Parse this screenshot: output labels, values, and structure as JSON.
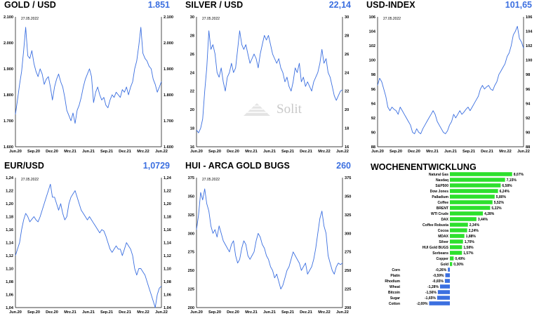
{
  "watermark": {
    "text": "Solit"
  },
  "chart_data": [
    {
      "id": "gold",
      "type": "line",
      "title": "GOLD / USD",
      "last_value": "1.851",
      "date_label": "27.05.2022",
      "color": "#3b6fe0",
      "x_labels": [
        "Jun.20",
        "Sep.20",
        "Dez.20",
        "Mrz.21",
        "Jun.21",
        "Sep.21",
        "Dez.21",
        "Mrz.22",
        "Jun.22"
      ],
      "y_ticks": [
        "2.100",
        "2.000",
        "1.900",
        "1.800",
        "1.700",
        "1.600"
      ],
      "ylim": [
        1600,
        2100
      ],
      "values": [
        1725,
        1780,
        1840,
        1890,
        1970,
        2060,
        1950,
        1940,
        1970,
        1920,
        1890,
        1870,
        1900,
        1880,
        1840,
        1860,
        1870,
        1830,
        1780,
        1830,
        1860,
        1880,
        1850,
        1830,
        1790,
        1740,
        1720,
        1700,
        1730,
        1690,
        1740,
        1760,
        1790,
        1830,
        1860,
        1880,
        1900,
        1870,
        1770,
        1810,
        1830,
        1800,
        1780,
        1790,
        1760,
        1750,
        1780,
        1800,
        1790,
        1810,
        1800,
        1790,
        1820,
        1810,
        1830,
        1800,
        1830,
        1850,
        1900,
        1930,
        1990,
        2060,
        1960,
        1940,
        1930,
        1910,
        1900,
        1860,
        1840,
        1810,
        1830,
        1851
      ]
    },
    {
      "id": "silver",
      "type": "line",
      "title": "SILVER / USD",
      "last_value": "22,14",
      "date_label": "27.05.2022",
      "color": "#3b6fe0",
      "x_labels": [
        "Jun.20",
        "Sep.20",
        "Dez.20",
        "Mrz.21",
        "Jun.21",
        "Sep.21",
        "Dez.21",
        "Mrz.22",
        "Jun.22"
      ],
      "y_ticks": [
        "30",
        "28",
        "26",
        "24",
        "22",
        "20",
        "18",
        "16"
      ],
      "ylim": [
        16,
        30
      ],
      "values": [
        17.8,
        17.5,
        18,
        19,
        22,
        24.5,
        28.5,
        26.5,
        27,
        26,
        24,
        23.5,
        24.5,
        23,
        22,
        23.5,
        24,
        25,
        24,
        24.5,
        26.5,
        28.5,
        27,
        26.5,
        27,
        26,
        25,
        25.5,
        26,
        25.5,
        24.5,
        26,
        27,
        28,
        27.5,
        28,
        27,
        26,
        25.5,
        25,
        25.5,
        24.5,
        24,
        23,
        23.5,
        22.5,
        22,
        23,
        24.5,
        24,
        25,
        23,
        23.5,
        22.5,
        23,
        22.5,
        22,
        23,
        23.5,
        24,
        25,
        26.5,
        25,
        25.5,
        24,
        23.5,
        22.5,
        21.5,
        21,
        21.5,
        22,
        22.14
      ]
    },
    {
      "id": "usd-index",
      "type": "line",
      "title": "USD-INDEX",
      "last_value": "101,65",
      "date_label": "27.05.2022",
      "color": "#3b6fe0",
      "x_labels": [
        "Jun.20",
        "Sep.20",
        "Dez.20",
        "Mrz.21",
        "Jun.21",
        "Sep.21",
        "Dez.21",
        "Mrz.22",
        "Jun.22"
      ],
      "y_ticks": [
        "106",
        "104",
        "102",
        "100",
        "98",
        "96",
        "94",
        "92",
        "90",
        "88"
      ],
      "ylim": [
        88,
        106
      ],
      "values": [
        96.5,
        97.5,
        97,
        96,
        95,
        93.5,
        93,
        93.5,
        93.2,
        93,
        92.5,
        93.5,
        93,
        92.5,
        92,
        91.5,
        91,
        90,
        89.8,
        90.5,
        90,
        89.8,
        90.5,
        91,
        91.5,
        92,
        92.5,
        93,
        92.5,
        91.5,
        91,
        90.5,
        90,
        89.8,
        90.2,
        91,
        91.5,
        92.5,
        92,
        92.5,
        93,
        92.5,
        92.8,
        93.2,
        93.5,
        93,
        93.5,
        94,
        94.5,
        95,
        96,
        96.5,
        96,
        96.3,
        96.5,
        96,
        95.8,
        96.5,
        97,
        98,
        98.5,
        99,
        99.5,
        100.5,
        101,
        102,
        103.5,
        104,
        104.7,
        103,
        102.5,
        101.65
      ]
    },
    {
      "id": "eur-usd",
      "type": "line",
      "title": "EUR/USD",
      "last_value": "1,0729",
      "date_label": "27.05.2022",
      "color": "#3b6fe0",
      "x_labels": [
        "Jun.20",
        "Sep.20",
        "Dez.20",
        "Mrz.21",
        "Jun.21",
        "Sep.21",
        "Dez.21",
        "Mrz.22",
        "Jun.22"
      ],
      "y_ticks": [
        "1,24",
        "1,22",
        "1,20",
        "1,18",
        "1,16",
        "1,14",
        "1,12",
        "1,10",
        "1,08",
        "1,06",
        "1,04"
      ],
      "ylim": [
        1.04,
        1.24
      ],
      "values": [
        1.12,
        1.13,
        1.14,
        1.16,
        1.175,
        1.185,
        1.18,
        1.172,
        1.176,
        1.18,
        1.175,
        1.172,
        1.18,
        1.19,
        1.2,
        1.21,
        1.22,
        1.23,
        1.21,
        1.21,
        1.2,
        1.19,
        1.2,
        1.185,
        1.175,
        1.18,
        1.2,
        1.21,
        1.215,
        1.22,
        1.21,
        1.2,
        1.19,
        1.185,
        1.18,
        1.175,
        1.18,
        1.175,
        1.17,
        1.165,
        1.16,
        1.155,
        1.16,
        1.158,
        1.15,
        1.14,
        1.13,
        1.125,
        1.13,
        1.135,
        1.13,
        1.13,
        1.12,
        1.13,
        1.14,
        1.135,
        1.13,
        1.12,
        1.1,
        1.09,
        1.1,
        1.1,
        1.095,
        1.09,
        1.08,
        1.07,
        1.06,
        1.05,
        1.04,
        1.06,
        1.07,
        1.0729
      ]
    },
    {
      "id": "hui",
      "type": "line",
      "title": "HUI - ARCA GOLD BUGS",
      "last_value": "260",
      "date_label": "27.05.2022",
      "color": "#3b6fe0",
      "x_labels": [
        "Jun.20",
        "Sep.20",
        "Dez.20",
        "Mrz.21",
        "Jun.21",
        "Sep.21",
        "Dez.21",
        "Mrz.22",
        "Jun.22"
      ],
      "y_ticks": [
        "375",
        "350",
        "325",
        "300",
        "275",
        "250",
        "225",
        "200"
      ],
      "ylim": [
        200,
        375
      ],
      "values": [
        305,
        325,
        355,
        345,
        360,
        340,
        330,
        310,
        300,
        305,
        295,
        310,
        300,
        290,
        285,
        280,
        275,
        285,
        290,
        270,
        260,
        265,
        280,
        290,
        285,
        270,
        265,
        270,
        275,
        290,
        300,
        295,
        285,
        280,
        270,
        265,
        255,
        250,
        240,
        245,
        235,
        225,
        230,
        240,
        250,
        255,
        265,
        275,
        270,
        265,
        260,
        250,
        255,
        260,
        245,
        250,
        255,
        265,
        280,
        300,
        320,
        330,
        310,
        300,
        270,
        260,
        250,
        245,
        255,
        260,
        258,
        260
      ]
    },
    {
      "id": "wochenentwicklung",
      "type": "bar",
      "orientation": "horizontal",
      "title": "WOCHENENTWICKLUNG",
      "positive_color": "#2de02d",
      "negative_color": "#3b6fe0",
      "categories": [
        "Natural Gas",
        "Nasdaq",
        "S&P500",
        "Dow Jones",
        "Palladium",
        "Coffee",
        "BRENT",
        "WTI Crude",
        "DAX",
        "Coffee Robusta",
        "Cocoa",
        "MDAX",
        "Silver",
        "HUI Gold BUGS",
        "Sorbeans",
        "Copper",
        "Gold",
        "Corn",
        "Platin",
        "Rhodium",
        "Wheat",
        "Bitcoin",
        "Sugar",
        "Cotton"
      ],
      "values": [
        8.07,
        7.15,
        6.58,
        6.24,
        5.8,
        5.52,
        5.22,
        4.28,
        3.44,
        2.34,
        2.24,
        1.88,
        1.7,
        1.58,
        1.57,
        0.49,
        0.3,
        -0.26,
        -0.59,
        -0.65,
        -1.28,
        -1.56,
        -1.65,
        -2.69
      ],
      "value_labels": [
        "8,07%",
        "7,15%",
        "6,58%",
        "6,24%",
        "5,80%",
        "5,52%",
        "5,22%",
        "4,28%",
        "3,44%",
        "2,34%",
        "2,24%",
        "1,88%",
        "1,70%",
        "1,58%",
        "1,57%",
        "0,49%",
        "0,30%",
        "-0,26%",
        "-0,59%",
        "-0,65%",
        "-1,28%",
        "-1,56%",
        "-1,65%",
        "-2,69%"
      ]
    }
  ]
}
